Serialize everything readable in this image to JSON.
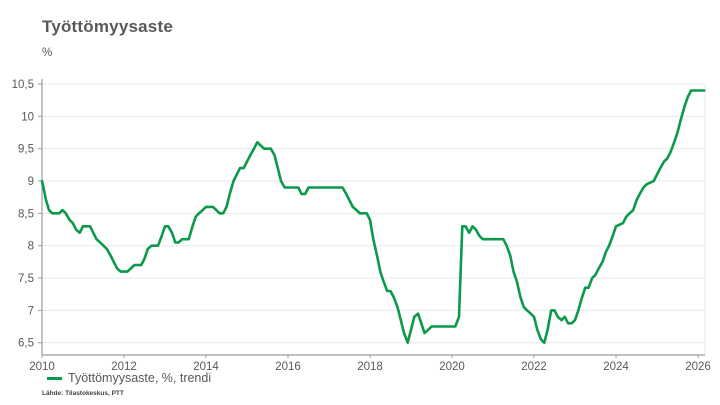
{
  "header": {
    "title": "Työttömyysaste",
    "subtitle": "%"
  },
  "legend": {
    "label": "Työttömyysaste, %, trendi"
  },
  "source": "Lähde: Tilastokeskus, PTT",
  "colors": {
    "line": "#0a9a49",
    "grid": "#e9e9e9",
    "axis": "#9b9b9b",
    "tick_text": "#595959",
    "background": "#ffffff"
  },
  "chart_data": {
    "type": "line",
    "title": "Työttömyysaste",
    "unit_label": "%",
    "xlabel": "",
    "ylabel": "%",
    "xlim": [
      2010,
      2026.17
    ],
    "ylim": [
      6.5,
      10.5
    ],
    "grid": "horizontal",
    "legend_position": "bottom-left",
    "x_ticks": [
      2010,
      2012,
      2014,
      2016,
      2018,
      2020,
      2022,
      2024,
      2026
    ],
    "y_ticks": [
      {
        "value": 10.5,
        "label": "10,5"
      },
      {
        "value": 10.0,
        "label": "10"
      },
      {
        "value": 9.5,
        "label": "9,5"
      },
      {
        "value": 9.0,
        "label": "9"
      },
      {
        "value": 8.5,
        "label": "8,5"
      },
      {
        "value": 8.0,
        "label": "8"
      },
      {
        "value": 7.5,
        "label": "7,5"
      },
      {
        "value": 7.0,
        "label": "7"
      },
      {
        "value": 6.5,
        "label": "6,5"
      }
    ],
    "series": [
      {
        "name": "Työttömyysaste, %, trendi",
        "color": "#0a9a49",
        "points": [
          [
            2010.0,
            9.0
          ],
          [
            2010.05,
            8.85
          ],
          [
            2010.1,
            8.7
          ],
          [
            2010.17,
            8.55
          ],
          [
            2010.25,
            8.5
          ],
          [
            2010.42,
            8.5
          ],
          [
            2010.5,
            8.55
          ],
          [
            2010.58,
            8.5
          ],
          [
            2010.67,
            8.4
          ],
          [
            2010.75,
            8.35
          ],
          [
            2010.83,
            8.25
          ],
          [
            2010.92,
            8.2
          ],
          [
            2011.0,
            8.3
          ],
          [
            2011.17,
            8.3
          ],
          [
            2011.25,
            8.2
          ],
          [
            2011.33,
            8.1
          ],
          [
            2011.42,
            8.05
          ],
          [
            2011.5,
            8.0
          ],
          [
            2011.58,
            7.95
          ],
          [
            2011.67,
            7.85
          ],
          [
            2011.75,
            7.75
          ],
          [
            2011.83,
            7.65
          ],
          [
            2011.92,
            7.6
          ],
          [
            2012.08,
            7.6
          ],
          [
            2012.17,
            7.65
          ],
          [
            2012.25,
            7.7
          ],
          [
            2012.42,
            7.7
          ],
          [
            2012.5,
            7.8
          ],
          [
            2012.58,
            7.95
          ],
          [
            2012.67,
            8.0
          ],
          [
            2012.83,
            8.0
          ],
          [
            2012.92,
            8.15
          ],
          [
            2013.0,
            8.3
          ],
          [
            2013.08,
            8.3
          ],
          [
            2013.17,
            8.2
          ],
          [
            2013.25,
            8.05
          ],
          [
            2013.33,
            8.05
          ],
          [
            2013.42,
            8.1
          ],
          [
            2013.58,
            8.1
          ],
          [
            2013.67,
            8.3
          ],
          [
            2013.75,
            8.45
          ],
          [
            2013.83,
            8.5
          ],
          [
            2013.92,
            8.55
          ],
          [
            2014.0,
            8.6
          ],
          [
            2014.17,
            8.6
          ],
          [
            2014.25,
            8.55
          ],
          [
            2014.33,
            8.5
          ],
          [
            2014.42,
            8.5
          ],
          [
            2014.5,
            8.6
          ],
          [
            2014.58,
            8.8
          ],
          [
            2014.67,
            9.0
          ],
          [
            2014.75,
            9.1
          ],
          [
            2014.83,
            9.2
          ],
          [
            2014.92,
            9.2
          ],
          [
            2015.0,
            9.3
          ],
          [
            2015.08,
            9.4
          ],
          [
            2015.17,
            9.5
          ],
          [
            2015.25,
            9.6
          ],
          [
            2015.33,
            9.55
          ],
          [
            2015.42,
            9.5
          ],
          [
            2015.58,
            9.5
          ],
          [
            2015.67,
            9.4
          ],
          [
            2015.75,
            9.2
          ],
          [
            2015.83,
            9.0
          ],
          [
            2015.92,
            8.9
          ],
          [
            2016.25,
            8.9
          ],
          [
            2016.33,
            8.8
          ],
          [
            2016.42,
            8.8
          ],
          [
            2016.5,
            8.9
          ],
          [
            2017.33,
            8.9
          ],
          [
            2017.42,
            8.8
          ],
          [
            2017.5,
            8.7
          ],
          [
            2017.58,
            8.6
          ],
          [
            2017.67,
            8.55
          ],
          [
            2017.75,
            8.5
          ],
          [
            2017.92,
            8.5
          ],
          [
            2018.0,
            8.4
          ],
          [
            2018.08,
            8.1
          ],
          [
            2018.17,
            7.85
          ],
          [
            2018.25,
            7.6
          ],
          [
            2018.33,
            7.45
          ],
          [
            2018.42,
            7.3
          ],
          [
            2018.5,
            7.3
          ],
          [
            2018.58,
            7.2
          ],
          [
            2018.67,
            7.05
          ],
          [
            2018.75,
            6.85
          ],
          [
            2018.83,
            6.65
          ],
          [
            2018.92,
            6.5
          ],
          [
            2019.0,
            6.7
          ],
          [
            2019.08,
            6.9
          ],
          [
            2019.17,
            6.95
          ],
          [
            2019.25,
            6.8
          ],
          [
            2019.33,
            6.65
          ],
          [
            2019.42,
            6.7
          ],
          [
            2019.5,
            6.75
          ],
          [
            2020.08,
            6.75
          ],
          [
            2020.17,
            6.9
          ],
          [
            2020.25,
            8.3
          ],
          [
            2020.33,
            8.3
          ],
          [
            2020.42,
            8.2
          ],
          [
            2020.5,
            8.3
          ],
          [
            2020.58,
            8.25
          ],
          [
            2020.67,
            8.15
          ],
          [
            2020.75,
            8.1
          ],
          [
            2021.25,
            8.1
          ],
          [
            2021.33,
            8.0
          ],
          [
            2021.42,
            7.85
          ],
          [
            2021.5,
            7.6
          ],
          [
            2021.58,
            7.45
          ],
          [
            2021.67,
            7.2
          ],
          [
            2021.75,
            7.05
          ],
          [
            2021.83,
            7.0
          ],
          [
            2021.92,
            6.95
          ],
          [
            2022.0,
            6.9
          ],
          [
            2022.08,
            6.7
          ],
          [
            2022.17,
            6.55
          ],
          [
            2022.25,
            6.5
          ],
          [
            2022.33,
            6.7
          ],
          [
            2022.42,
            7.0
          ],
          [
            2022.5,
            7.0
          ],
          [
            2022.58,
            6.9
          ],
          [
            2022.67,
            6.85
          ],
          [
            2022.75,
            6.9
          ],
          [
            2022.83,
            6.8
          ],
          [
            2022.92,
            6.8
          ],
          [
            2023.0,
            6.85
          ],
          [
            2023.08,
            7.0
          ],
          [
            2023.17,
            7.2
          ],
          [
            2023.25,
            7.35
          ],
          [
            2023.33,
            7.35
          ],
          [
            2023.42,
            7.5
          ],
          [
            2023.5,
            7.55
          ],
          [
            2023.58,
            7.65
          ],
          [
            2023.67,
            7.75
          ],
          [
            2023.75,
            7.9
          ],
          [
            2023.83,
            8.0
          ],
          [
            2023.92,
            8.15
          ],
          [
            2024.0,
            8.3
          ],
          [
            2024.17,
            8.35
          ],
          [
            2024.25,
            8.45
          ],
          [
            2024.33,
            8.5
          ],
          [
            2024.42,
            8.55
          ],
          [
            2024.5,
            8.7
          ],
          [
            2024.58,
            8.8
          ],
          [
            2024.67,
            8.9
          ],
          [
            2024.75,
            8.95
          ],
          [
            2024.92,
            9.0
          ],
          [
            2025.0,
            9.1
          ],
          [
            2025.08,
            9.2
          ],
          [
            2025.17,
            9.3
          ],
          [
            2025.25,
            9.35
          ],
          [
            2025.33,
            9.45
          ],
          [
            2025.42,
            9.6
          ],
          [
            2025.5,
            9.75
          ],
          [
            2025.58,
            9.95
          ],
          [
            2025.67,
            10.15
          ],
          [
            2025.75,
            10.3
          ],
          [
            2025.83,
            10.4
          ],
          [
            2026.15,
            10.4
          ]
        ]
      }
    ]
  }
}
